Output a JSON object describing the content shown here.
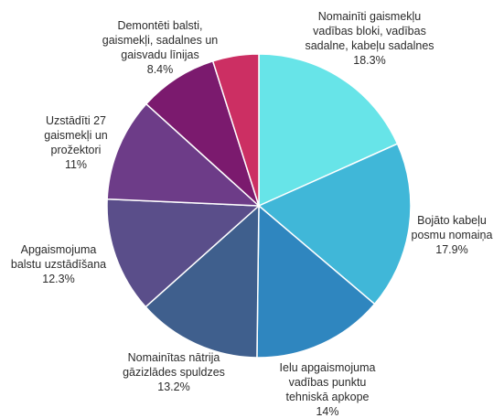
{
  "chart_data": {
    "type": "pie",
    "title": "",
    "slices": [
      {
        "label_lines": [
          "Nomainīti gaismekļu",
          "vadības bloki, vadības",
          "sadalne, kabeļu sadalnes"
        ],
        "value_label": "18.3%",
        "value": 18.3,
        "color": "#67e4e8"
      },
      {
        "label_lines": [
          "Bojāto kabeļu",
          "posmu nomaiņa"
        ],
        "value_label": "17.9%",
        "value": 17.9,
        "color": "#40b7d8"
      },
      {
        "label_lines": [
          "Ielu apgaismojuma",
          "vadības punktu",
          "tehniskā apkope"
        ],
        "value_label": "14%",
        "value": 14,
        "color": "#2f86bf"
      },
      {
        "label_lines": [
          "Nomainītas nātrija",
          "gāzizlādes spuldzes"
        ],
        "value_label": "13.2%",
        "value": 13.2,
        "color": "#3f5f8d"
      },
      {
        "label_lines": [
          "Apgaismojuma",
          "balstu uzstādīšana"
        ],
        "value_label": "12.3%",
        "value": 12.3,
        "color": "#5a4e8a"
      },
      {
        "label_lines": [
          "Uzstādīti 27",
          "gaismekļi un",
          "prožektori"
        ],
        "value_label": "11%",
        "value": 11,
        "color": "#6d3c88"
      },
      {
        "label_lines": [
          "Demontēti balsti,",
          "gaismekļi, sadalnes un",
          "gaisvadu līnijas"
        ],
        "value_label": "8.4%",
        "value": 8.4,
        "color": "#7b1a6e"
      },
      {
        "label_lines": [],
        "value_label": "",
        "value": 4.9,
        "color": "#cc2f63"
      }
    ]
  }
}
